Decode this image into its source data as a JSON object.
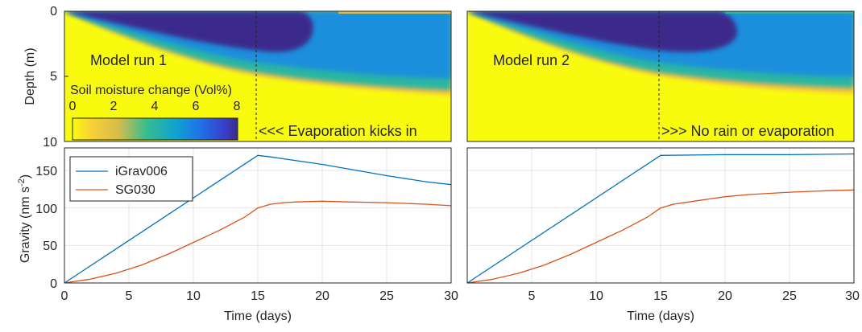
{
  "chart_data": [
    {
      "type": "heatmap",
      "panel": "top-left",
      "annotation": "Model run 1",
      "event_label": "<<< Evaporation kicks in",
      "ylabel": "Depth (m)",
      "ylim": [
        0,
        10
      ],
      "yticks": [
        "0",
        "5",
        "10"
      ],
      "xlim": [
        0,
        30
      ],
      "event_day": 15,
      "colorbar": {
        "title": "Soil moisture change (Vol%)",
        "ticks": [
          "0",
          "2",
          "4",
          "6",
          "8"
        ],
        "range": [
          0,
          8
        ]
      }
    },
    {
      "type": "heatmap",
      "panel": "top-right",
      "annotation": "Model run 2",
      "event_label": ">>> No rain or evaporation",
      "ylim": [
        0,
        10
      ],
      "xlim": [
        0,
        30
      ],
      "event_day": 15
    },
    {
      "type": "line",
      "panel": "bottom-left",
      "xlabel": "Time (days)",
      "ylabel": "Gravity (nm s",
      "ylabel_exp": "-2",
      "ylabel_end": ")",
      "xlim": [
        0,
        30
      ],
      "ylim": [
        0,
        180
      ],
      "xticks": [
        "0",
        "5",
        "10",
        "15",
        "20",
        "25",
        "30"
      ],
      "yticks": [
        "0",
        "50",
        "100",
        "150"
      ],
      "grid": true,
      "legend": "top-left",
      "series": [
        {
          "name": "iGrav006",
          "color": "#0072BD",
          "x": [
            0,
            15,
            16,
            18,
            20,
            22,
            25,
            28,
            30
          ],
          "values": [
            0,
            170,
            168,
            163,
            158,
            152,
            143,
            135,
            131
          ]
        },
        {
          "name": "SG030",
          "color": "#D95319",
          "x": [
            0,
            2,
            4,
            6,
            8,
            10,
            12,
            14,
            15,
            16,
            17,
            18,
            20,
            22,
            25,
            28,
            30
          ],
          "values": [
            0,
            5,
            13,
            24,
            38,
            54,
            70,
            88,
            100,
            105,
            107,
            108,
            109,
            108,
            107,
            105,
            103
          ]
        }
      ]
    },
    {
      "type": "line",
      "panel": "bottom-right",
      "xlabel": "Time (days)",
      "xlim": [
        0,
        30
      ],
      "ylim": [
        0,
        180
      ],
      "xticks": [
        "5",
        "10",
        "15",
        "20",
        "25",
        "30"
      ],
      "grid": true,
      "series": [
        {
          "name": "iGrav006",
          "color": "#0072BD",
          "x": [
            0,
            15,
            20,
            25,
            30
          ],
          "values": [
            0,
            170,
            171,
            171,
            172
          ]
        },
        {
          "name": "SG030",
          "color": "#D95319",
          "x": [
            0,
            2,
            4,
            6,
            8,
            10,
            12,
            14,
            15,
            16,
            18,
            20,
            22,
            25,
            28,
            30
          ],
          "values": [
            0,
            5,
            13,
            24,
            38,
            54,
            70,
            88,
            100,
            105,
            110,
            115,
            118,
            121,
            123,
            124
          ]
        }
      ]
    }
  ]
}
